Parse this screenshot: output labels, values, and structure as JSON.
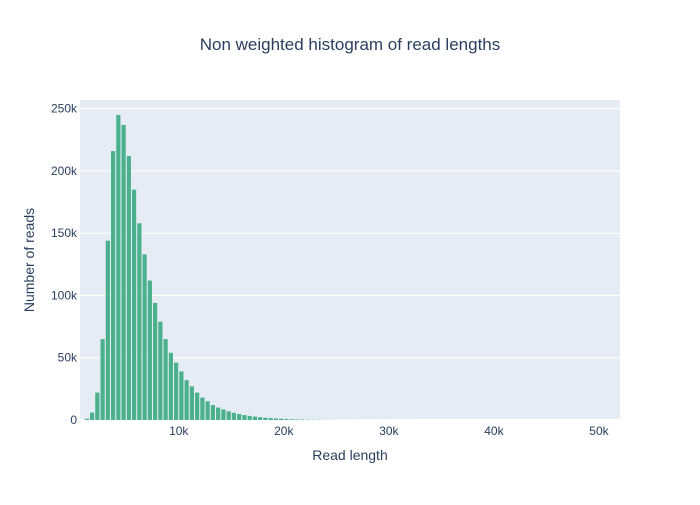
{
  "chart_data": {
    "type": "bar",
    "title": "Non weighted histogram of read lengths",
    "xlabel": "Read length",
    "ylabel": "Number of reads",
    "xlim": [
      600,
      52000
    ],
    "ylim": [
      0,
      257000
    ],
    "x_ticks": [
      10000,
      20000,
      30000,
      40000,
      50000
    ],
    "x_tick_labels": [
      "10k",
      "20k",
      "30k",
      "40k",
      "50k"
    ],
    "y_ticks": [
      0,
      50000,
      100000,
      150000,
      200000,
      250000
    ],
    "y_tick_labels": [
      "0",
      "50k",
      "100k",
      "150k",
      "200k",
      "250k"
    ],
    "grid": true,
    "legend": "none",
    "bar_color": "#4bb18c",
    "plot_background": "#e5ecf6",
    "bin_width": 500,
    "bin_starts": [
      1000,
      1500,
      2000,
      2500,
      3000,
      3500,
      4000,
      4500,
      5000,
      5500,
      6000,
      6500,
      7000,
      7500,
      8000,
      8500,
      9000,
      9500,
      10000,
      10500,
      11000,
      11500,
      12000,
      12500,
      13000,
      13500,
      14000,
      14500,
      15000,
      15500,
      16000,
      16500,
      17000,
      17500,
      18000,
      18500,
      19000,
      19500,
      20000,
      20500,
      21000,
      21500,
      22000,
      22500,
      23000,
      23500,
      24000,
      24500,
      25000,
      25500,
      26000,
      26500,
      27000,
      27500,
      28000,
      28500,
      29000,
      29500,
      30000,
      30500,
      31000,
      31500,
      32000,
      32500,
      33000,
      33500,
      34000,
      34500,
      35000,
      35500,
      36000,
      36500,
      37000,
      37500,
      38000,
      38500,
      39000,
      39500,
      40000,
      40500,
      41000,
      41500,
      42000,
      42500,
      43000,
      43500,
      44000,
      44500,
      45000,
      45500,
      46000,
      46500,
      47000,
      47500,
      48000,
      48500,
      49000,
      49500
    ],
    "values": [
      1000,
      6000,
      22000,
      65000,
      144000,
      216000,
      245000,
      237000,
      212000,
      185000,
      158000,
      133000,
      112000,
      94000,
      79000,
      65000,
      54000,
      46000,
      39000,
      32000,
      27000,
      22000,
      18000,
      15000,
      12000,
      10000,
      8500,
      7000,
      5800,
      4800,
      4000,
      3300,
      2700,
      2200,
      1800,
      1500,
      1200,
      1000,
      800,
      650,
      520,
      420,
      340,
      280,
      230,
      190,
      150,
      120,
      100,
      80,
      65,
      52,
      42,
      34,
      28,
      22,
      18,
      15,
      12,
      10,
      8,
      6,
      5,
      4,
      3,
      3,
      2,
      2,
      2,
      1,
      1,
      1,
      1,
      1,
      1,
      1,
      1,
      1,
      1,
      1,
      1,
      1,
      1,
      1,
      1,
      1,
      1,
      1,
      1,
      1,
      1,
      1,
      1,
      1,
      1,
      1,
      1,
      1
    ]
  }
}
